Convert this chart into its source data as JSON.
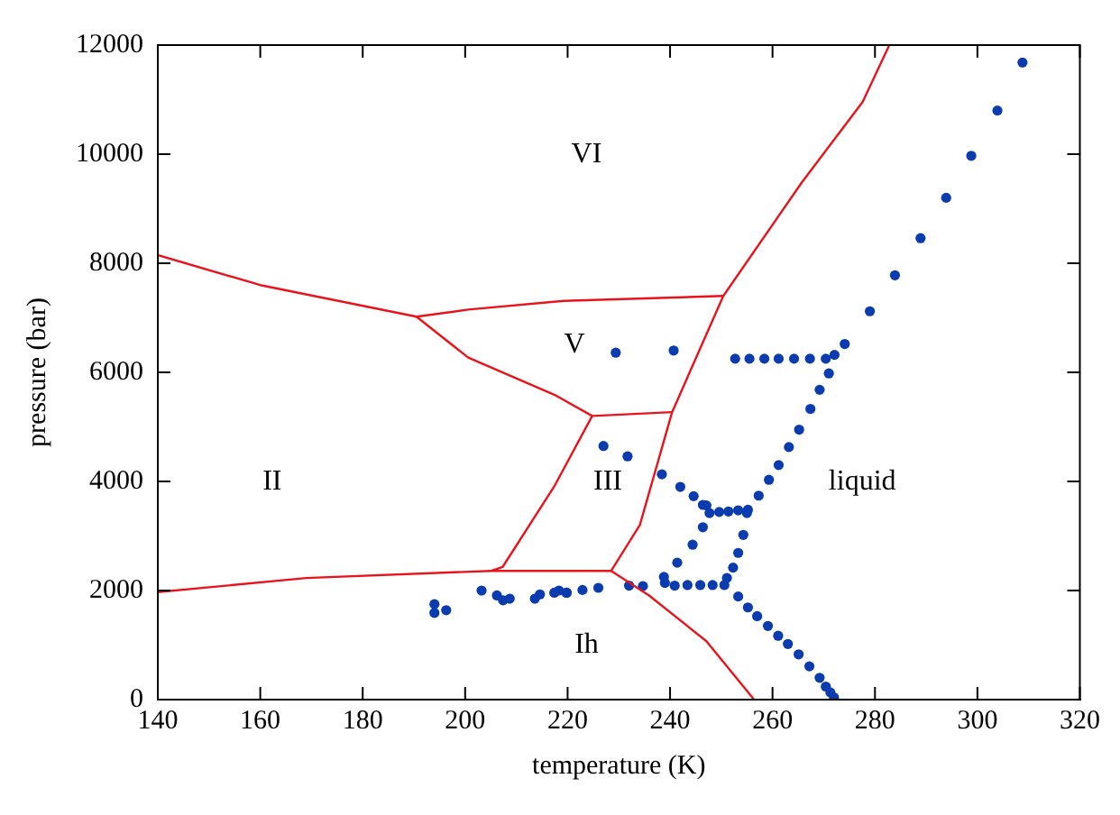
{
  "chart_data": {
    "type": "scatter",
    "xlabel": "temperature (K)",
    "ylabel": "pressure (bar)",
    "xlim": [
      140,
      320
    ],
    "xticks": [
      140,
      160,
      180,
      200,
      220,
      240,
      260,
      280,
      300,
      320
    ],
    "ylim": [
      0,
      12000
    ],
    "yticks": [
      0,
      2000,
      4000,
      6000,
      8000,
      10000,
      12000
    ],
    "grid": false,
    "legend": false,
    "marker": "circle",
    "annotations": [
      "VI",
      "V",
      "II",
      "III",
      "liquid",
      "Ih"
    ],
    "series": [
      {
        "type": "line",
        "color": "#e8141c",
        "marker": "none",
        "x": [
          140,
          160,
          190.5,
          200.6,
          219.2,
          250.4
        ],
        "values": [
          8150,
          7600,
          7020,
          7150,
          7310,
          7400
        ]
      },
      {
        "type": "line",
        "color": "#e8141c",
        "marker": "none",
        "x": [
          190.5,
          200.6,
          217.4,
          224.8,
          217.4,
          207.3,
          205.1
        ],
        "values": [
          7020,
          6270,
          5590,
          5200,
          3910,
          2430,
          2360
        ]
      },
      {
        "type": "line",
        "color": "#e8141c",
        "marker": "none",
        "x": [
          224.8,
          240.4
        ],
        "values": [
          5200,
          5270
        ]
      },
      {
        "type": "line",
        "color": "#e8141c",
        "marker": "none",
        "x": [
          140,
          169,
          205.1,
          228.5,
          234.1,
          240.4,
          250.4,
          265.7,
          277.6,
          282.8
        ],
        "values": [
          1970,
          2230,
          2360,
          2360,
          3200,
          5270,
          7400,
          9480,
          10960,
          12000
        ]
      },
      {
        "type": "line",
        "color": "#e8141c",
        "marker": "none",
        "x": [
          228.5,
          235.9,
          247.1,
          256.4
        ],
        "values": [
          2360,
          1910,
          1070,
          0
        ]
      },
      {
        "type": "scatter",
        "color": "#0a3cb0",
        "x": [
          194.0,
          194.0,
          196.3,
          203.2,
          206.2,
          207.4,
          208.7,
          213.6,
          214.6,
          218.3,
          219.8,
          229.4,
          240.7,
          252.7,
          255.5,
          258.4,
          261.2,
          264.2,
          267.3,
          270.4,
          272.1,
          274.1,
          271.0,
          269.2,
          267.4,
          265.2,
          263.2,
          261.2,
          259.3,
          257.3,
          247.1,
          247.7,
          249.6,
          251.4,
          253.3,
          255.2,
          255.0,
          227.0,
          231.7,
          238.4,
          242.0,
          244.6,
          246.4,
          246.4,
          244.4,
          241.4,
          238.8,
          254.3,
          253.3,
          252.3,
          217.4,
          219.8,
          222.9,
          226.0,
          232.0,
          234.7,
          239.0,
          240.9,
          243.4,
          245.9,
          248.3,
          250.6,
          251.1,
          253.3,
          255.2,
          257.0,
          259.1,
          261.1,
          263.0,
          265.1,
          267.2,
          269.2,
          270.4,
          271.3,
          272.0,
          279.0,
          283.9,
          288.9,
          293.9,
          298.8,
          303.9,
          308.8
        ],
        "values": [
          1750,
          1590,
          1640,
          2000,
          1910,
          1820,
          1850,
          1850,
          1930,
          2000,
          1960,
          6360,
          6400,
          6250,
          6250,
          6250,
          6250,
          6250,
          6250,
          6250,
          6320,
          6520,
          5980,
          5680,
          5330,
          4950,
          4630,
          4300,
          4030,
          3740,
          3560,
          3420,
          3440,
          3450,
          3470,
          3480,
          3420,
          4650,
          4460,
          4130,
          3900,
          3730,
          3570,
          3160,
          2840,
          2510,
          2250,
          3020,
          2690,
          2420,
          1960,
          1960,
          2010,
          2050,
          2090,
          2080,
          2140,
          2090,
          2100,
          2100,
          2100,
          2100,
          2230,
          1890,
          1690,
          1530,
          1350,
          1170,
          1020,
          830,
          610,
          400,
          240,
          130,
          40,
          7120,
          7780,
          8460,
          9200,
          9970,
          10800,
          11680
        ]
      }
    ]
  }
}
